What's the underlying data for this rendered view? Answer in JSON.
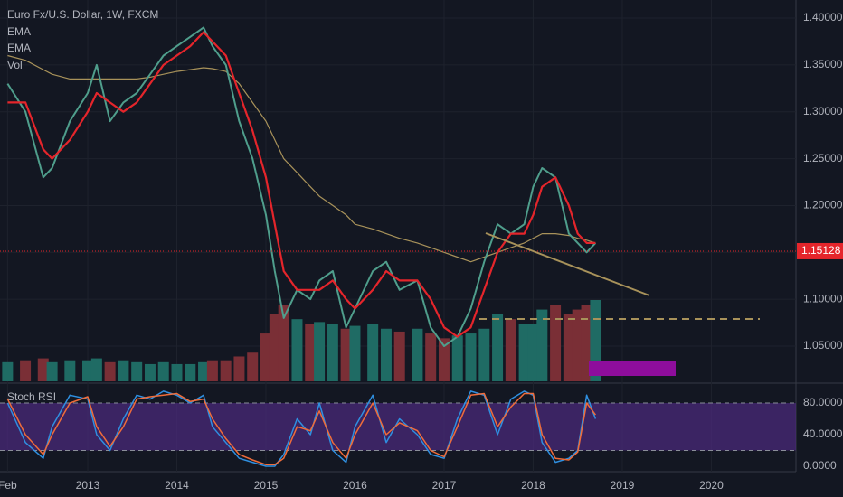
{
  "chart_data": {
    "type": "price",
    "title": "Euro Fx/U.S. Dollar, 1W, FXCM",
    "x": [
      2012.1,
      2012.3,
      2012.5,
      2012.6,
      2012.8,
      2013.0,
      2013.1,
      2013.25,
      2013.4,
      2013.55,
      2013.7,
      2013.85,
      2014.0,
      2014.15,
      2014.3,
      2014.4,
      2014.55,
      2014.7,
      2014.85,
      2015.0,
      2015.1,
      2015.2,
      2015.35,
      2015.5,
      2015.6,
      2015.75,
      2015.9,
      2016.0,
      2016.2,
      2016.35,
      2016.5,
      2016.7,
      2016.85,
      2017.0,
      2017.15,
      2017.3,
      2017.45,
      2017.6,
      2017.75,
      2017.9,
      2018.0,
      2018.1,
      2018.25,
      2018.4,
      2018.5,
      2018.6,
      2018.7
    ],
    "price": {
      "color": "#4f9e8c",
      "values": [
        1.33,
        1.3,
        1.23,
        1.24,
        1.29,
        1.32,
        1.35,
        1.29,
        1.31,
        1.32,
        1.34,
        1.36,
        1.37,
        1.38,
        1.39,
        1.37,
        1.35,
        1.29,
        1.25,
        1.19,
        1.13,
        1.08,
        1.11,
        1.1,
        1.12,
        1.13,
        1.07,
        1.09,
        1.13,
        1.14,
        1.11,
        1.12,
        1.07,
        1.05,
        1.06,
        1.09,
        1.14,
        1.18,
        1.17,
        1.18,
        1.22,
        1.24,
        1.23,
        1.17,
        1.16,
        1.15,
        1.16
      ]
    },
    "series": [
      {
        "name": "EMA",
        "color": "#e5252b",
        "values": [
          1.31,
          1.31,
          1.26,
          1.25,
          1.27,
          1.3,
          1.32,
          1.31,
          1.3,
          1.31,
          1.33,
          1.35,
          1.36,
          1.37,
          1.385,
          1.375,
          1.36,
          1.32,
          1.28,
          1.23,
          1.18,
          1.13,
          1.11,
          1.11,
          1.11,
          1.12,
          1.1,
          1.09,
          1.11,
          1.13,
          1.12,
          1.12,
          1.1,
          1.07,
          1.06,
          1.07,
          1.11,
          1.15,
          1.17,
          1.17,
          1.19,
          1.22,
          1.23,
          1.2,
          1.17,
          1.16,
          1.16
        ]
      },
      {
        "name": "EMA",
        "color": "#a8925a",
        "values": [
          1.36,
          1.355,
          1.345,
          1.34,
          1.335,
          1.335,
          1.335,
          1.335,
          1.335,
          1.335,
          1.337,
          1.34,
          1.343,
          1.345,
          1.347,
          1.346,
          1.343,
          1.33,
          1.31,
          1.29,
          1.27,
          1.25,
          1.235,
          1.22,
          1.21,
          1.2,
          1.19,
          1.18,
          1.175,
          1.17,
          1.165,
          1.16,
          1.155,
          1.15,
          1.145,
          1.14,
          1.145,
          1.15,
          1.155,
          1.16,
          1.165,
          1.17,
          1.17,
          1.168,
          1.165,
          1.163,
          1.16
        ]
      }
    ],
    "volume": {
      "name": "Vol",
      "up_color": "#1f6b64",
      "down_color": "#7a2f36",
      "values": [
        20,
        22,
        24,
        20,
        22,
        22,
        24,
        20,
        22,
        20,
        18,
        20,
        18,
        18,
        20,
        22,
        22,
        26,
        30,
        50,
        70,
        80,
        65,
        60,
        62,
        60,
        55,
        58,
        60,
        55,
        52,
        55,
        50,
        45,
        48,
        50,
        55,
        70,
        65,
        60,
        60,
        75,
        80,
        70,
        75,
        80,
        85
      ]
    },
    "last_price": 1.15128,
    "xlim": [
      2012.015,
      2020.95
    ],
    "xticks": [
      {
        "value": 2012.1,
        "label": "Feb"
      },
      2013,
      2014,
      2015,
      2016,
      2017,
      2018,
      2019,
      2020
    ],
    "ylim": [
      1.0124,
      1.4193
    ],
    "yticks": [
      {
        "value": 1.05,
        "label": "1.05000"
      },
      {
        "value": 1.1,
        "label": "1.10000"
      },
      {
        "value": 1.15,
        "label": "1.15000"
      },
      {
        "value": 1.2,
        "label": "1.20000"
      },
      {
        "value": 1.25,
        "label": "1.25000"
      },
      {
        "value": 1.3,
        "label": "1.30000"
      },
      {
        "value": 1.35,
        "label": "1.35000"
      },
      {
        "value": 1.4,
        "label": "1.40000"
      }
    ],
    "oscillator": {
      "title": "Stoch RSI",
      "ylim": [
        -6.9,
        100.6
      ],
      "yticks": [
        {
          "value": 0,
          "label": "0.0000"
        },
        {
          "value": 40,
          "label": "40.0000"
        },
        {
          "value": 80,
          "label": "80.0000"
        }
      ],
      "bands": [
        20,
        80
      ],
      "band_color": "#4a2a7a",
      "series": [
        {
          "color": "#2f8fe0",
          "values": [
            80,
            30,
            10,
            50,
            90,
            85,
            40,
            20,
            60,
            90,
            85,
            95,
            90,
            80,
            90,
            50,
            30,
            10,
            5,
            0,
            0,
            15,
            60,
            40,
            80,
            20,
            5,
            50,
            90,
            30,
            60,
            40,
            15,
            10,
            60,
            95,
            90,
            40,
            85,
            95,
            90,
            30,
            5,
            10,
            20,
            90,
            60
          ]
        },
        {
          "color": "#ef6c3a",
          "values": [
            85,
            40,
            15,
            40,
            80,
            88,
            50,
            25,
            50,
            85,
            88,
            90,
            92,
            82,
            85,
            60,
            35,
            15,
            8,
            2,
            2,
            10,
            50,
            45,
            70,
            30,
            10,
            40,
            80,
            40,
            55,
            45,
            20,
            12,
            50,
            90,
            92,
            50,
            75,
            92,
            92,
            40,
            10,
            8,
            18,
            80,
            65
          ]
        }
      ]
    }
  }
}
